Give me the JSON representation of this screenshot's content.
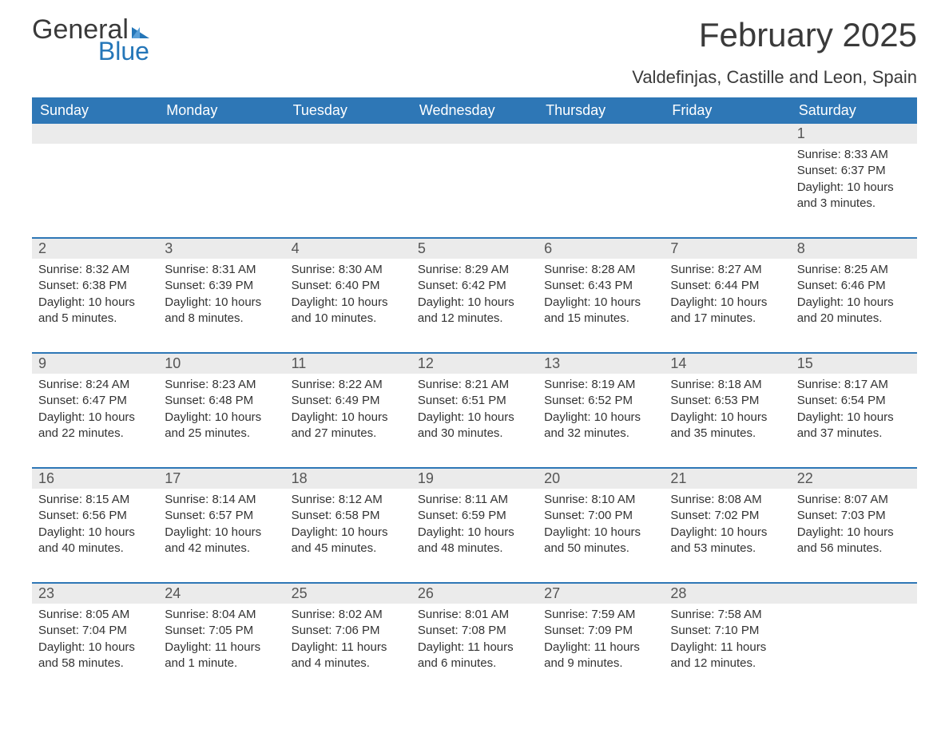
{
  "logo": {
    "word1": "General",
    "word2": "Blue"
  },
  "title": "February 2025",
  "location": "Valdefinjas, Castille and Leon, Spain",
  "colors": {
    "header_bg": "#2e77b6",
    "header_text": "#ffffff",
    "daynum_bg": "#ebebeb",
    "text": "#333333",
    "logo_blue": "#2476b8"
  },
  "weekdays": [
    "Sunday",
    "Monday",
    "Tuesday",
    "Wednesday",
    "Thursday",
    "Friday",
    "Saturday"
  ],
  "weeks": [
    [
      null,
      null,
      null,
      null,
      null,
      null,
      {
        "n": "1",
        "sr": "8:33 AM",
        "ss": "6:37 PM",
        "dl": "10 hours and 3 minutes."
      }
    ],
    [
      {
        "n": "2",
        "sr": "8:32 AM",
        "ss": "6:38 PM",
        "dl": "10 hours and 5 minutes."
      },
      {
        "n": "3",
        "sr": "8:31 AM",
        "ss": "6:39 PM",
        "dl": "10 hours and 8 minutes."
      },
      {
        "n": "4",
        "sr": "8:30 AM",
        "ss": "6:40 PM",
        "dl": "10 hours and 10 minutes."
      },
      {
        "n": "5",
        "sr": "8:29 AM",
        "ss": "6:42 PM",
        "dl": "10 hours and 12 minutes."
      },
      {
        "n": "6",
        "sr": "8:28 AM",
        "ss": "6:43 PM",
        "dl": "10 hours and 15 minutes."
      },
      {
        "n": "7",
        "sr": "8:27 AM",
        "ss": "6:44 PM",
        "dl": "10 hours and 17 minutes."
      },
      {
        "n": "8",
        "sr": "8:25 AM",
        "ss": "6:46 PM",
        "dl": "10 hours and 20 minutes."
      }
    ],
    [
      {
        "n": "9",
        "sr": "8:24 AM",
        "ss": "6:47 PM",
        "dl": "10 hours and 22 minutes."
      },
      {
        "n": "10",
        "sr": "8:23 AM",
        "ss": "6:48 PM",
        "dl": "10 hours and 25 minutes."
      },
      {
        "n": "11",
        "sr": "8:22 AM",
        "ss": "6:49 PM",
        "dl": "10 hours and 27 minutes."
      },
      {
        "n": "12",
        "sr": "8:21 AM",
        "ss": "6:51 PM",
        "dl": "10 hours and 30 minutes."
      },
      {
        "n": "13",
        "sr": "8:19 AM",
        "ss": "6:52 PM",
        "dl": "10 hours and 32 minutes."
      },
      {
        "n": "14",
        "sr": "8:18 AM",
        "ss": "6:53 PM",
        "dl": "10 hours and 35 minutes."
      },
      {
        "n": "15",
        "sr": "8:17 AM",
        "ss": "6:54 PM",
        "dl": "10 hours and 37 minutes."
      }
    ],
    [
      {
        "n": "16",
        "sr": "8:15 AM",
        "ss": "6:56 PM",
        "dl": "10 hours and 40 minutes."
      },
      {
        "n": "17",
        "sr": "8:14 AM",
        "ss": "6:57 PM",
        "dl": "10 hours and 42 minutes."
      },
      {
        "n": "18",
        "sr": "8:12 AM",
        "ss": "6:58 PM",
        "dl": "10 hours and 45 minutes."
      },
      {
        "n": "19",
        "sr": "8:11 AM",
        "ss": "6:59 PM",
        "dl": "10 hours and 48 minutes."
      },
      {
        "n": "20",
        "sr": "8:10 AM",
        "ss": "7:00 PM",
        "dl": "10 hours and 50 minutes."
      },
      {
        "n": "21",
        "sr": "8:08 AM",
        "ss": "7:02 PM",
        "dl": "10 hours and 53 minutes."
      },
      {
        "n": "22",
        "sr": "8:07 AM",
        "ss": "7:03 PM",
        "dl": "10 hours and 56 minutes."
      }
    ],
    [
      {
        "n": "23",
        "sr": "8:05 AM",
        "ss": "7:04 PM",
        "dl": "10 hours and 58 minutes."
      },
      {
        "n": "24",
        "sr": "8:04 AM",
        "ss": "7:05 PM",
        "dl": "11 hours and 1 minute."
      },
      {
        "n": "25",
        "sr": "8:02 AM",
        "ss": "7:06 PM",
        "dl": "11 hours and 4 minutes."
      },
      {
        "n": "26",
        "sr": "8:01 AM",
        "ss": "7:08 PM",
        "dl": "11 hours and 6 minutes."
      },
      {
        "n": "27",
        "sr": "7:59 AM",
        "ss": "7:09 PM",
        "dl": "11 hours and 9 minutes."
      },
      {
        "n": "28",
        "sr": "7:58 AM",
        "ss": "7:10 PM",
        "dl": "11 hours and 12 minutes."
      },
      null
    ]
  ],
  "labels": {
    "sunrise": "Sunrise: ",
    "sunset": "Sunset: ",
    "daylight": "Daylight: "
  }
}
